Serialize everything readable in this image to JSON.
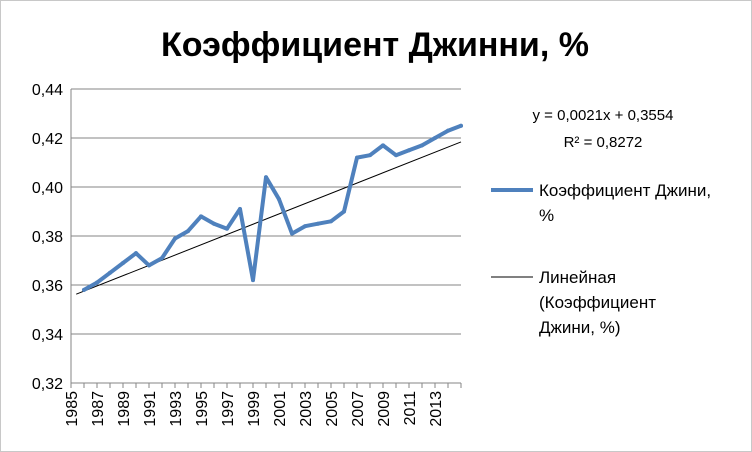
{
  "chart_data": {
    "type": "line",
    "title": "Коэффициент Джинни, %",
    "xlabel": "",
    "ylabel": "",
    "x_ticks": [
      "1985",
      "1987",
      "1989",
      "1991",
      "1993",
      "1995",
      "1997",
      "1999",
      "2001",
      "2003",
      "2005",
      "2007",
      "2009",
      "2011",
      "2013"
    ],
    "y_ticks": [
      "0,32",
      "0,34",
      "0,36",
      "0,38",
      "0,40",
      "0,42",
      "0,44"
    ],
    "xlim": [
      1985,
      2015
    ],
    "ylim": [
      0.32,
      0.44
    ],
    "grid": true,
    "legend_position": "right",
    "series": [
      {
        "name": "Коэффициент Джини, %",
        "color": "#4f81bd",
        "x": [
          1986,
          1987,
          1988,
          1989,
          1990,
          1991,
          1992,
          1993,
          1994,
          1995,
          1996,
          1997,
          1998,
          1999,
          2000,
          2001,
          2002,
          2003,
          2004,
          2005,
          2006,
          2007,
          2008,
          2009,
          2010,
          2011,
          2012,
          2013,
          2014,
          2015
        ],
        "y": [
          0.358,
          0.361,
          0.365,
          0.369,
          0.373,
          0.368,
          0.371,
          0.379,
          0.382,
          0.388,
          0.385,
          0.383,
          0.391,
          0.362,
          0.404,
          0.395,
          0.381,
          0.384,
          0.385,
          0.386,
          0.39,
          0.412,
          0.413,
          0.417,
          0.413,
          0.415,
          0.417,
          0.42,
          0.423,
          0.425
        ]
      }
    ],
    "trendline": {
      "name_lines": [
        "Линейная",
        "(Коэффициент",
        "Джини, %)"
      ],
      "color": "#000000",
      "slope": 0.0021,
      "intercept": 0.3554,
      "x_start": 1985.4,
      "x_end": 2015,
      "equation": "y = 0,0021x + 0,3554",
      "r_squared": "R² = 0,8272"
    },
    "legend": {
      "series_label_lines": [
        "Коэффициент  Джини,",
        "%"
      ]
    }
  }
}
